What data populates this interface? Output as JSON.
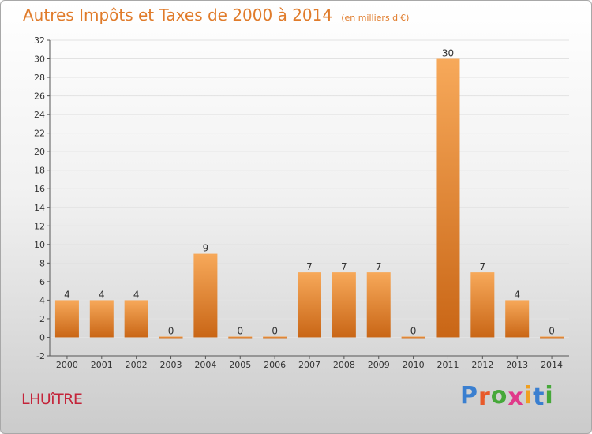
{
  "title": "Autres Impôts et Taxes de 2000 à 2014",
  "subtitle": "(en milliers d'€)",
  "place": "LHUîTRE",
  "brand": {
    "letters": [
      "P",
      "r",
      "o",
      "x",
      "i",
      "t",
      "i"
    ],
    "colors": [
      "#3a7fd0",
      "#e85a2a",
      "#46a83a",
      "#e03a8a",
      "#f0a020",
      "#3a7fd0",
      "#46a83a"
    ]
  },
  "colors": {
    "bar_light": "#f7a95a",
    "bar_dark": "#c96616",
    "text": "#333333",
    "grid": "#e2e2e2"
  },
  "chart_data": {
    "type": "bar",
    "title": "Autres Impôts et Taxes de 2000 à 2014",
    "subtitle": "(en milliers d'€)",
    "categories": [
      "2000",
      "2001",
      "2002",
      "2003",
      "2004",
      "2005",
      "2006",
      "2007",
      "2008",
      "2009",
      "2010",
      "2011",
      "2012",
      "2013",
      "2014"
    ],
    "values": [
      4,
      4,
      4,
      0,
      9,
      0,
      0,
      7,
      7,
      7,
      0,
      30,
      7,
      4,
      0
    ],
    "data_labels": [
      "4",
      "4",
      "4",
      "0",
      "9",
      "0",
      "0",
      "7",
      "7",
      "7",
      "0",
      "30",
      "7",
      "4",
      "0"
    ],
    "ylim": [
      -2,
      32
    ],
    "yticks": [
      -2,
      0,
      2,
      4,
      6,
      8,
      10,
      12,
      14,
      16,
      18,
      20,
      22,
      24,
      26,
      28,
      30,
      32
    ],
    "ytick_labels": [
      "-2",
      "0",
      "2",
      "4",
      "6",
      "8",
      "10",
      "12",
      "14",
      "16",
      "18",
      "20",
      "22",
      "24",
      "26",
      "28",
      "30",
      "32"
    ],
    "grid": true,
    "xlabel": "",
    "ylabel": ""
  }
}
